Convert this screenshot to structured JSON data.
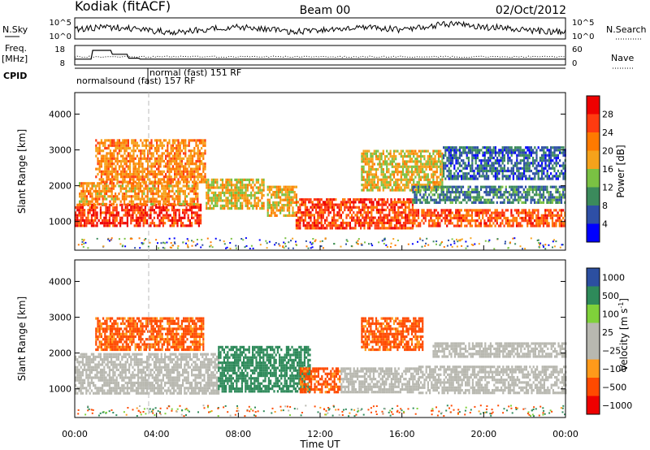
{
  "header": {
    "radar": "Kodiak (fitACF)",
    "beam": "Beam 00",
    "date": "02/Oct/2012"
  },
  "top_panels": {
    "nsky_label": "N.Sky",
    "nsearch_label": "N.Search",
    "noise_ticks": [
      "10^5",
      "10^0"
    ],
    "freq_label": "Freq.",
    "freq_unit": "[MHz]",
    "freq_ticks": [
      "18",
      "8"
    ],
    "nave_label": "Nave",
    "nave_ticks": [
      "60",
      "0"
    ],
    "cpid_label": "CPID",
    "cpid_entries": [
      "normal (fast) 151 RF",
      "normalsound (fast) 157 RF"
    ]
  },
  "colors": {
    "power": [
      "#0000ff",
      "#2e4fa6",
      "#3b8a5c",
      "#7ac143",
      "#f5a21b",
      "#ff7a00",
      "#ff3b10",
      "#ee0000"
    ],
    "velocity": [
      "#ee0000",
      "#ff4a00",
      "#ff9a1a",
      "#b8b8b0",
      "#b8b8b0",
      "#7fd13a",
      "#2e8a5a",
      "#2c4fa0"
    ]
  },
  "chart_data": [
    {
      "type": "heatmap",
      "name": "power-panel",
      "xlabel": "",
      "ylabel": "Slant Range [km]",
      "xlim": [
        "00:00",
        "24:00"
      ],
      "ylim": [
        200,
        4600
      ],
      "yticks": [
        "1000",
        "2000",
        "3000",
        "4000"
      ],
      "colorbar": {
        "label": "Power [dB]",
        "range": [
          0,
          32
        ],
        "ticks": [
          "4",
          "8",
          "12",
          "16",
          "20",
          "24",
          "28"
        ]
      },
      "bands": [
        {
          "t0": 0.0,
          "t1": 6.2,
          "r0": 850,
          "r1": 1500,
          "value": 27
        },
        {
          "t0": 0.2,
          "t1": 6.0,
          "r0": 1500,
          "r1": 2100,
          "value": 20
        },
        {
          "t0": 1.0,
          "t1": 6.4,
          "r0": 2100,
          "r1": 3300,
          "value": 21
        },
        {
          "t0": 6.4,
          "t1": 9.2,
          "r0": 1400,
          "r1": 2200,
          "value": 17
        },
        {
          "t0": 9.4,
          "t1": 10.8,
          "r0": 1200,
          "r1": 2000,
          "value": 18
        },
        {
          "t0": 10.8,
          "t1": 16.5,
          "r0": 850,
          "r1": 1650,
          "value": 26
        },
        {
          "t0": 14.0,
          "t1": 18.0,
          "r0": 1900,
          "r1": 3000,
          "value": 17
        },
        {
          "t0": 16.5,
          "t1": 24.0,
          "r0": 850,
          "r1": 1350,
          "value": 25
        },
        {
          "t0": 16.5,
          "t1": 24.0,
          "r0": 1500,
          "r1": 2000,
          "value": 9
        },
        {
          "t0": 18.0,
          "t1": 24.0,
          "r0": 2200,
          "r1": 3100,
          "value": 7
        }
      ]
    },
    {
      "type": "heatmap",
      "name": "velocity-panel",
      "xlabel": "Time UT",
      "ylabel": "Slant Range [km]",
      "xlim": [
        "00:00",
        "24:00"
      ],
      "ylim": [
        200,
        4600
      ],
      "xticks": [
        "00:00",
        "04:00",
        "08:00",
        "12:00",
        "16:00",
        "20:00",
        "00:00"
      ],
      "yticks": [
        "1000",
        "2000",
        "3000",
        "4000"
      ],
      "colorbar": {
        "label": "Velocity [m s",
        "unit_sup": "-1",
        "unit_close": "]",
        "ticks": [
          "1000",
          "500",
          "100",
          "25",
          "−25",
          "−100",
          "−500",
          "−1000"
        ]
      },
      "bands": [
        {
          "t0": 0.0,
          "t1": 7.0,
          "r0": 900,
          "r1": 2000,
          "value": 0
        },
        {
          "t0": 1.0,
          "t1": 6.3,
          "r0": 2100,
          "r1": 3000,
          "value": -150
        },
        {
          "t0": 7.0,
          "t1": 11.5,
          "r0": 900,
          "r1": 2200,
          "value": 300
        },
        {
          "t0": 11.0,
          "t1": 13.0,
          "r0": 900,
          "r1": 1600,
          "value": -150
        },
        {
          "t0": 13.0,
          "t1": 16.8,
          "r0": 900,
          "r1": 1600,
          "value": 0
        },
        {
          "t0": 14.0,
          "t1": 17.0,
          "r0": 2100,
          "r1": 3000,
          "value": -150
        },
        {
          "t0": 16.8,
          "t1": 24.0,
          "r0": 900,
          "r1": 1650,
          "value": 0
        },
        {
          "t0": 17.5,
          "t1": 24.0,
          "r0": 1900,
          "r1": 2300,
          "value": 0
        }
      ]
    }
  ]
}
